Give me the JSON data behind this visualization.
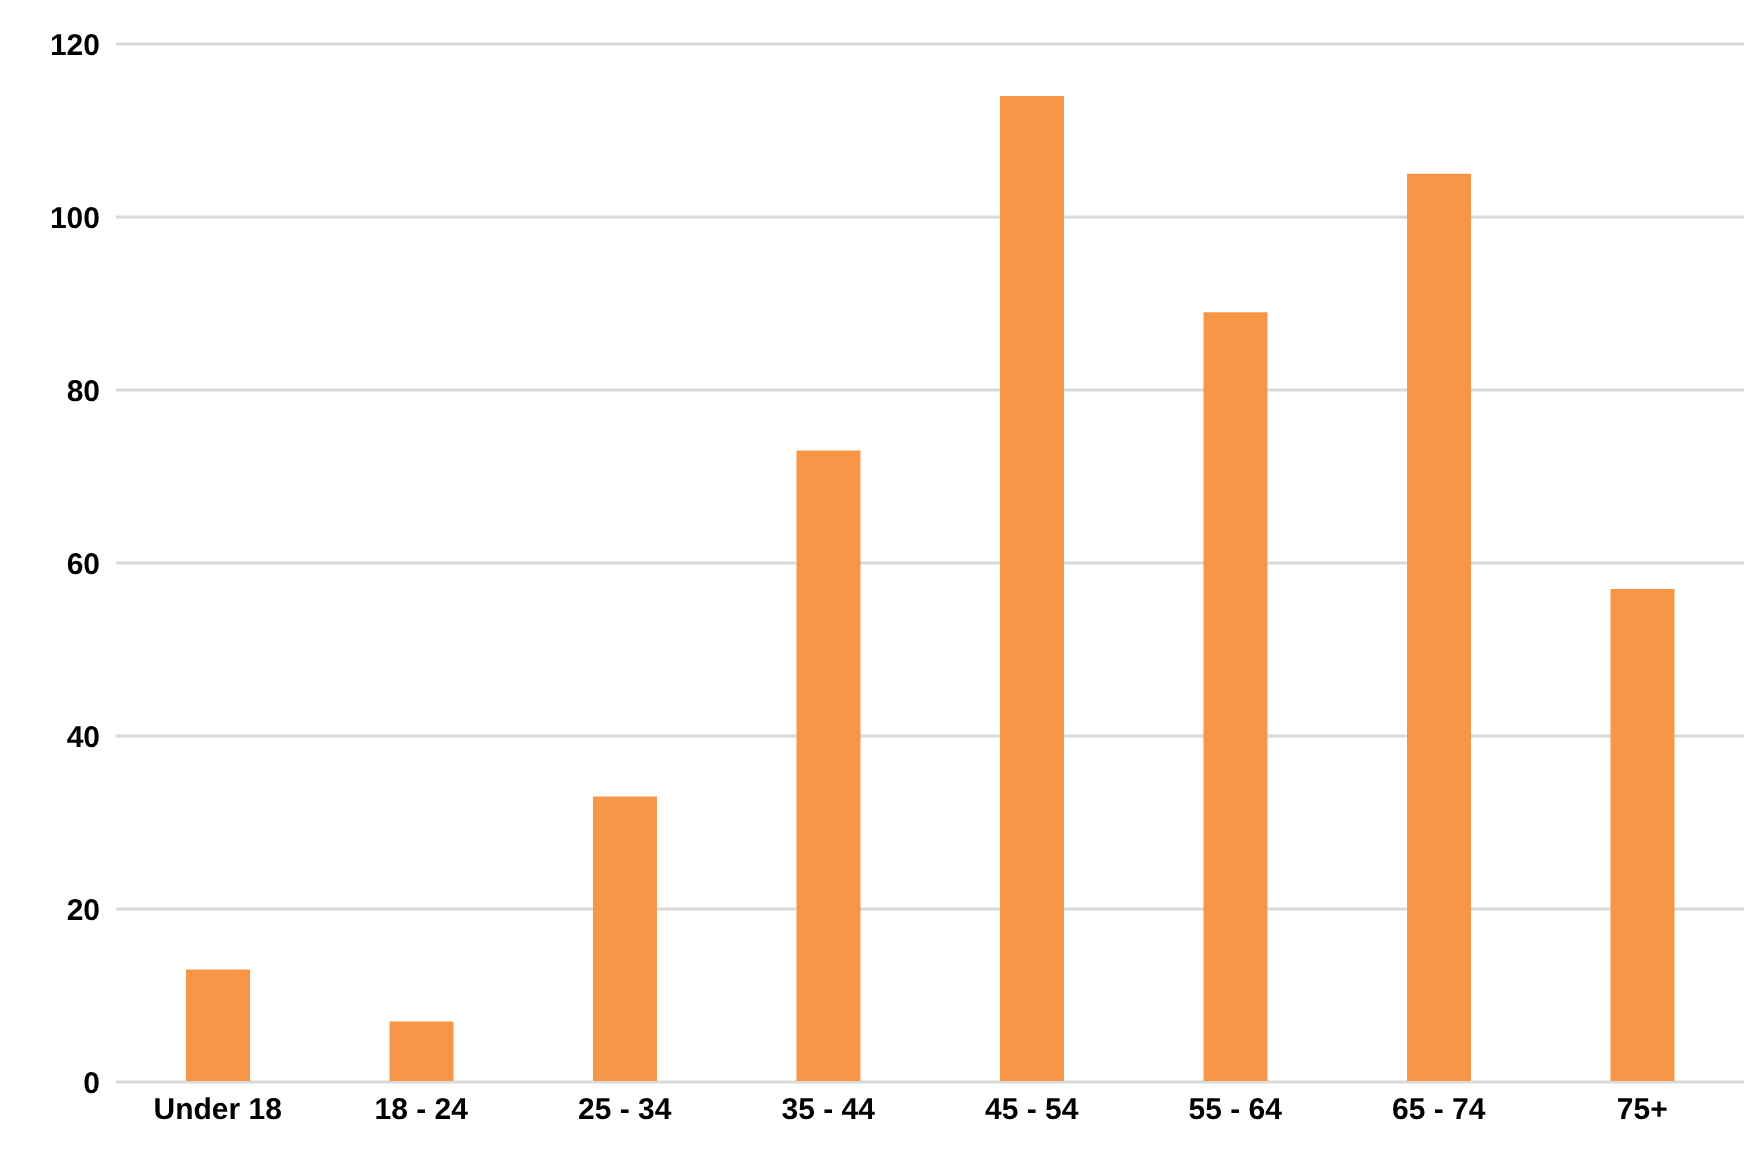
{
  "chart_data": {
    "type": "bar",
    "categories": [
      "Under 18",
      "18 - 24",
      "25 - 34",
      "35 - 44",
      "45 - 54",
      "55 - 64",
      "65 - 74",
      "75+"
    ],
    "values": [
      13,
      7,
      33,
      73,
      114,
      89,
      105,
      57
    ],
    "color": "#f79646",
    "ylim": [
      0,
      120
    ],
    "yticks": [
      0,
      20,
      40,
      60,
      80,
      100,
      120
    ],
    "grid": "y",
    "legend": false
  }
}
